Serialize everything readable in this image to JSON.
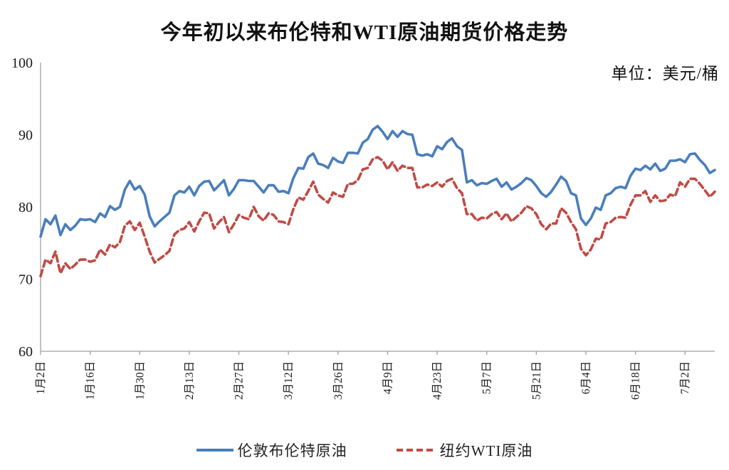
{
  "chart": {
    "title": "今年初以来布伦特和WTI原油期货价格走势",
    "unit_label": "单位：美元/桶",
    "legend_items": [
      {
        "label": "伦敦布伦特原油",
        "color": "#4a7ebb",
        "style": "solid"
      },
      {
        "label": "纽约WTI原油",
        "color": "#bf4b45",
        "style": "dashed"
      }
    ]
  },
  "chart_data": {
    "type": "line",
    "title": "今年初以来布伦特和WTI原油期货价格走势",
    "unit": "美元/桶",
    "xlabel": "",
    "ylabel": "",
    "ylim": [
      60,
      100
    ],
    "y_ticks": [
      60,
      70,
      80,
      90,
      100
    ],
    "grid": false,
    "legend_position": "bottom",
    "x_tick_labels": [
      "1月2日",
      "1月16日",
      "1月30日",
      "2月13日",
      "2月27日",
      "3月12日",
      "3月26日",
      "4月9日",
      "4月23日",
      "5月7日",
      "5月21日",
      "6月4日",
      "6月18日",
      "7月2日"
    ],
    "x_tick_interval": 10,
    "series": [
      {
        "name": "伦敦布伦特原油",
        "color": "#4a7ebb",
        "line_style": "solid",
        "values": [
          75.9,
          78.3,
          77.6,
          78.8,
          76.1,
          77.6,
          76.8,
          77.4,
          78.3,
          78.2,
          78.3,
          77.9,
          79.1,
          78.6,
          80.1,
          79.6,
          80.0,
          82.4,
          83.6,
          82.4,
          82.9,
          81.7,
          78.7,
          77.3,
          78.0,
          78.6,
          79.2,
          81.6,
          82.2,
          82.0,
          82.8,
          81.6,
          82.9,
          83.5,
          83.6,
          82.3,
          83.0,
          83.7,
          81.6,
          82.5,
          83.7,
          83.7,
          83.6,
          83.6,
          82.8,
          82.0,
          83.0,
          83.0,
          82.1,
          82.2,
          81.9,
          84.0,
          85.4,
          85.3,
          86.9,
          87.4,
          86.0,
          85.8,
          85.4,
          86.8,
          86.3,
          86.1,
          87.5,
          87.5,
          87.4,
          88.9,
          89.4,
          90.7,
          91.2,
          90.4,
          89.4,
          90.5,
          89.7,
          90.5,
          90.1,
          90.0,
          87.3,
          87.1,
          87.3,
          87.0,
          88.4,
          88.0,
          89.0,
          89.5,
          88.4,
          87.9,
          83.4,
          83.7,
          83.0,
          83.3,
          83.2,
          83.6,
          83.9,
          82.8,
          83.4,
          82.4,
          82.8,
          83.3,
          84.0,
          83.7,
          82.9,
          81.9,
          81.4,
          82.1,
          83.1,
          84.2,
          83.6,
          81.9,
          81.6,
          78.4,
          77.5,
          78.4,
          79.9,
          79.6,
          81.6,
          81.9,
          82.6,
          82.8,
          82.6,
          84.3,
          85.3,
          85.1,
          85.7,
          85.2,
          86.0,
          85.0,
          85.3,
          86.4,
          86.4,
          86.6,
          86.2,
          87.3,
          87.4,
          86.5,
          85.8,
          84.7,
          85.1
        ]
      },
      {
        "name": "纽约WTI原油",
        "color": "#bf4b45",
        "line_style": "dashed",
        "values": [
          70.4,
          72.7,
          72.2,
          73.8,
          70.8,
          72.2,
          71.4,
          72.0,
          72.7,
          72.7,
          72.4,
          72.6,
          74.1,
          73.4,
          74.8,
          74.4,
          75.1,
          77.4,
          78.0,
          76.8,
          77.8,
          75.9,
          73.8,
          72.3,
          72.8,
          73.3,
          73.9,
          76.2,
          76.8,
          77.0,
          77.9,
          76.6,
          78.0,
          79.2,
          79.1,
          77.0,
          77.9,
          78.6,
          76.5,
          77.6,
          78.9,
          78.5,
          78.3,
          80.0,
          78.7,
          78.1,
          79.1,
          78.9,
          78.0,
          77.9,
          77.6,
          79.7,
          81.3,
          81.0,
          82.2,
          83.5,
          81.7,
          81.1,
          80.6,
          82.0,
          81.6,
          81.4,
          83.2,
          83.2,
          83.7,
          85.2,
          85.4,
          86.6,
          86.9,
          86.4,
          85.2,
          86.2,
          85.0,
          85.7,
          85.4,
          85.4,
          82.7,
          82.7,
          83.1,
          82.9,
          83.4,
          82.8,
          83.6,
          83.9,
          82.6,
          81.9,
          79.0,
          79.0,
          78.1,
          78.5,
          78.4,
          79.0,
          79.3,
          78.3,
          79.1,
          78.0,
          78.6,
          79.2,
          80.1,
          79.8,
          79.0,
          77.6,
          76.9,
          77.7,
          77.7,
          79.8,
          79.2,
          77.9,
          76.9,
          74.2,
          73.3,
          74.1,
          75.6,
          75.5,
          77.7,
          77.9,
          78.5,
          78.6,
          78.5,
          80.3,
          81.6,
          81.6,
          82.2,
          80.7,
          81.6,
          80.8,
          80.9,
          81.7,
          81.5,
          83.4,
          82.8,
          83.9,
          83.9,
          83.2,
          82.3,
          81.4,
          82.1
        ]
      }
    ]
  }
}
